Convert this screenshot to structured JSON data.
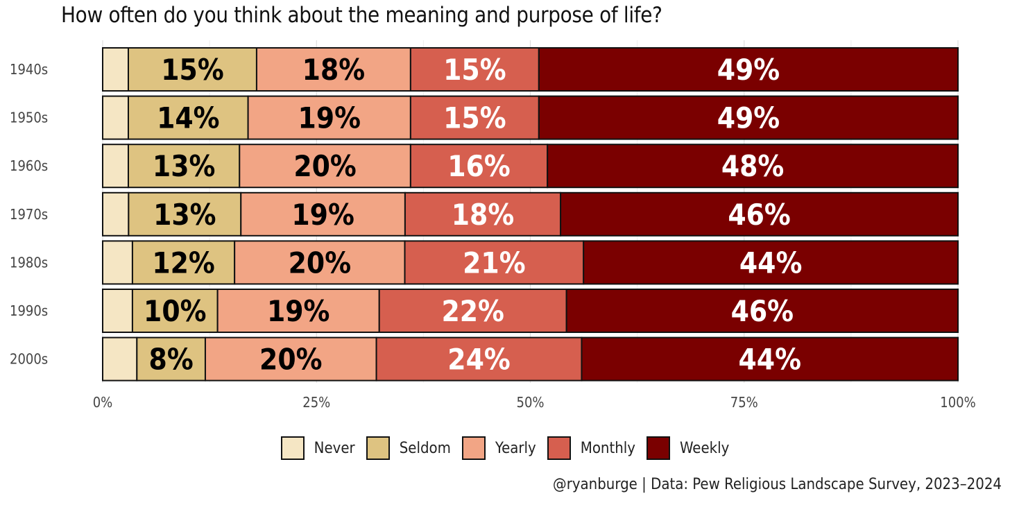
{
  "chart_data": {
    "type": "bar",
    "orientation": "horizontal",
    "stacked": true,
    "title": "How often do you think about the meaning and purpose of life?",
    "categories": [
      "1940s",
      "1950s",
      "1960s",
      "1970s",
      "1980s",
      "1990s",
      "2000s"
    ],
    "series": [
      {
        "name": "Never",
        "color": "#F5E6C4",
        "text_color": "#000000",
        "values": [
          3,
          3,
          3,
          3,
          3.5,
          3.5,
          4
        ]
      },
      {
        "name": "Seldom",
        "color": "#DEC381",
        "text_color": "#000000",
        "values": [
          15,
          14,
          13,
          13,
          12,
          10,
          8
        ]
      },
      {
        "name": "Yearly",
        "color": "#F2A585",
        "text_color": "#000000",
        "values": [
          18,
          19,
          20,
          19,
          20,
          19,
          20
        ]
      },
      {
        "name": "Monthly",
        "color": "#D65F4F",
        "text_color": "#FFFFFF",
        "values": [
          15,
          15,
          16,
          18,
          21,
          22,
          24
        ]
      },
      {
        "name": "Weekly",
        "color": "#7A0000",
        "text_color": "#FFFFFF",
        "values": [
          49,
          49,
          48,
          46,
          44,
          46,
          44
        ]
      }
    ],
    "data_labels": {
      "Never": [
        null,
        null,
        null,
        null,
        null,
        null,
        null
      ],
      "Seldom": [
        "15%",
        "14%",
        "13%",
        "13%",
        "12%",
        "10%",
        "8%"
      ],
      "Yearly": [
        "18%",
        "19%",
        "20%",
        "19%",
        "20%",
        "19%",
        "20%"
      ],
      "Monthly": [
        "15%",
        "15%",
        "16%",
        "18%",
        "21%",
        "22%",
        "24%"
      ],
      "Weekly": [
        "49%",
        "49%",
        "48%",
        "46%",
        "44%",
        "46%",
        "44%"
      ]
    },
    "xlim": [
      0,
      100
    ],
    "xticks": [
      0,
      25,
      50,
      75,
      100
    ],
    "xtick_labels": [
      "0%",
      "25%",
      "50%",
      "75%",
      "100%"
    ],
    "grid": true,
    "legend_position": "bottom",
    "caption": "@ryanburge | Data: Pew Religious Landscape Survey, 2023–2024"
  }
}
